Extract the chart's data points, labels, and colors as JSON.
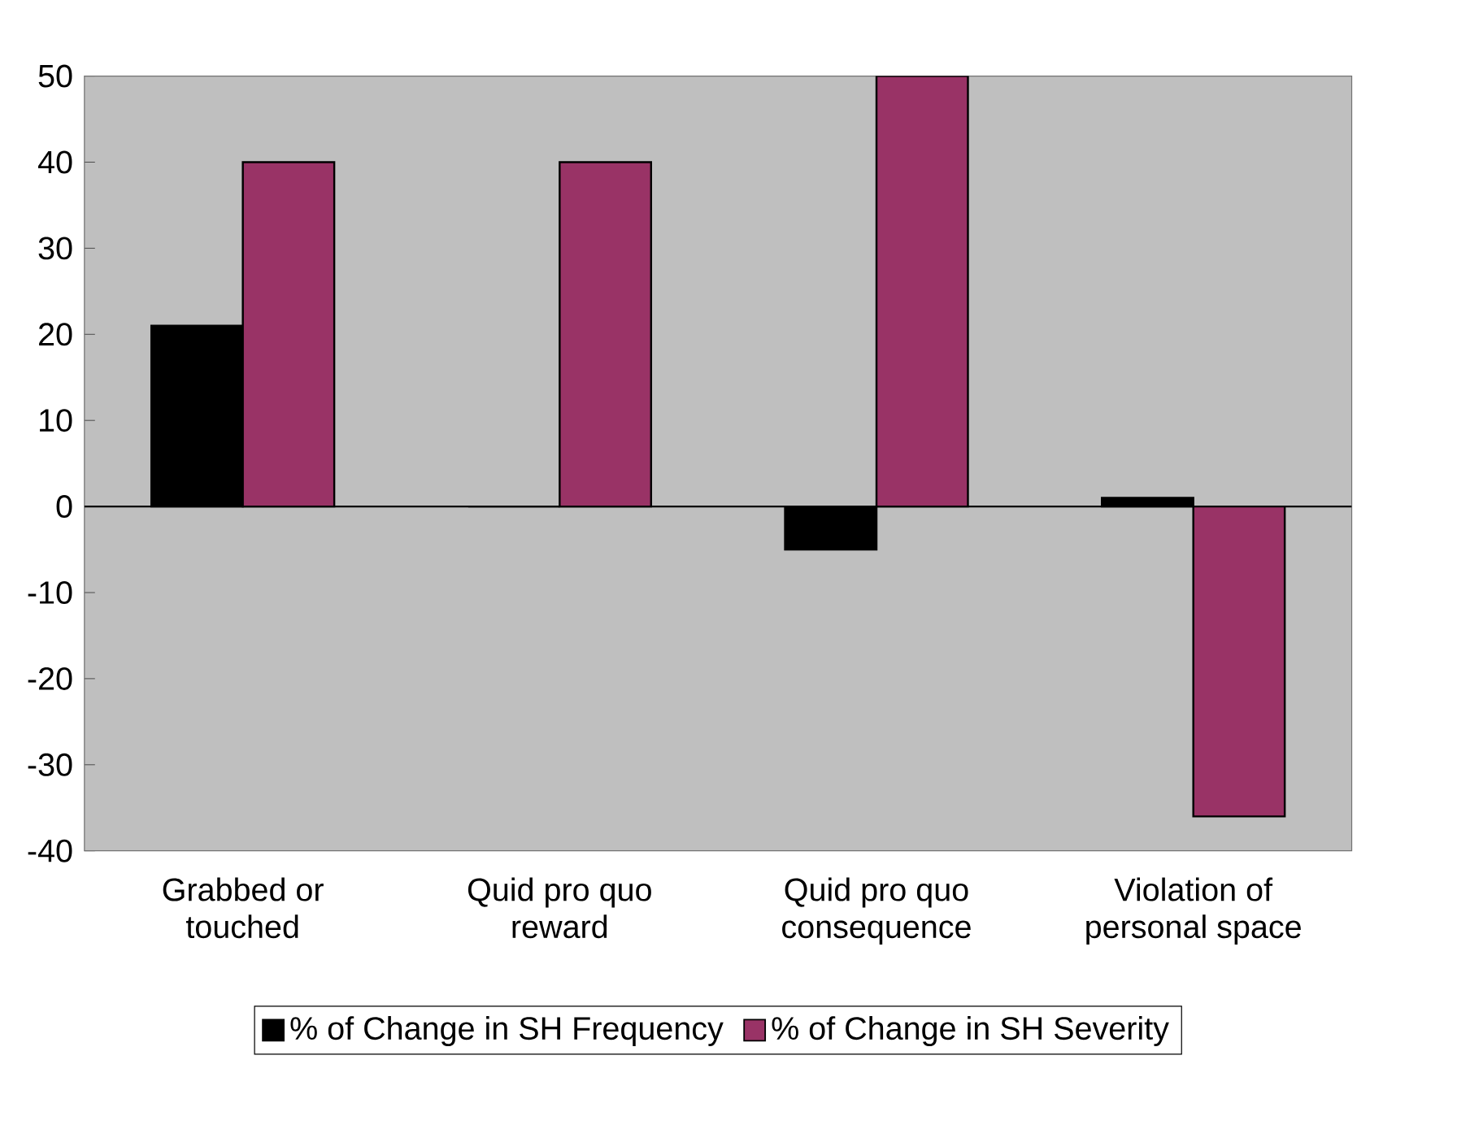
{
  "chart_data": {
    "type": "bar",
    "categories": [
      "Grabbed or touched",
      "Quid pro quo reward",
      "Quid pro quo consequence",
      "Violation of personal space"
    ],
    "series": [
      {
        "name": "% of Change in SH Frequency",
        "color": "#000000",
        "values": [
          21,
          0,
          -5,
          1
        ]
      },
      {
        "name": "% of Change in SH Severity",
        "color": "#993366",
        "values": [
          40,
          40,
          50,
          -36
        ]
      }
    ],
    "ylim": [
      -40,
      50
    ],
    "yticks": [
      -40,
      -30,
      -20,
      -10,
      0,
      10,
      20,
      30,
      40,
      50
    ],
    "grid": false,
    "legend": "bottom",
    "ref_lines": [
      {
        "axis": "y",
        "value": 0
      }
    ]
  }
}
